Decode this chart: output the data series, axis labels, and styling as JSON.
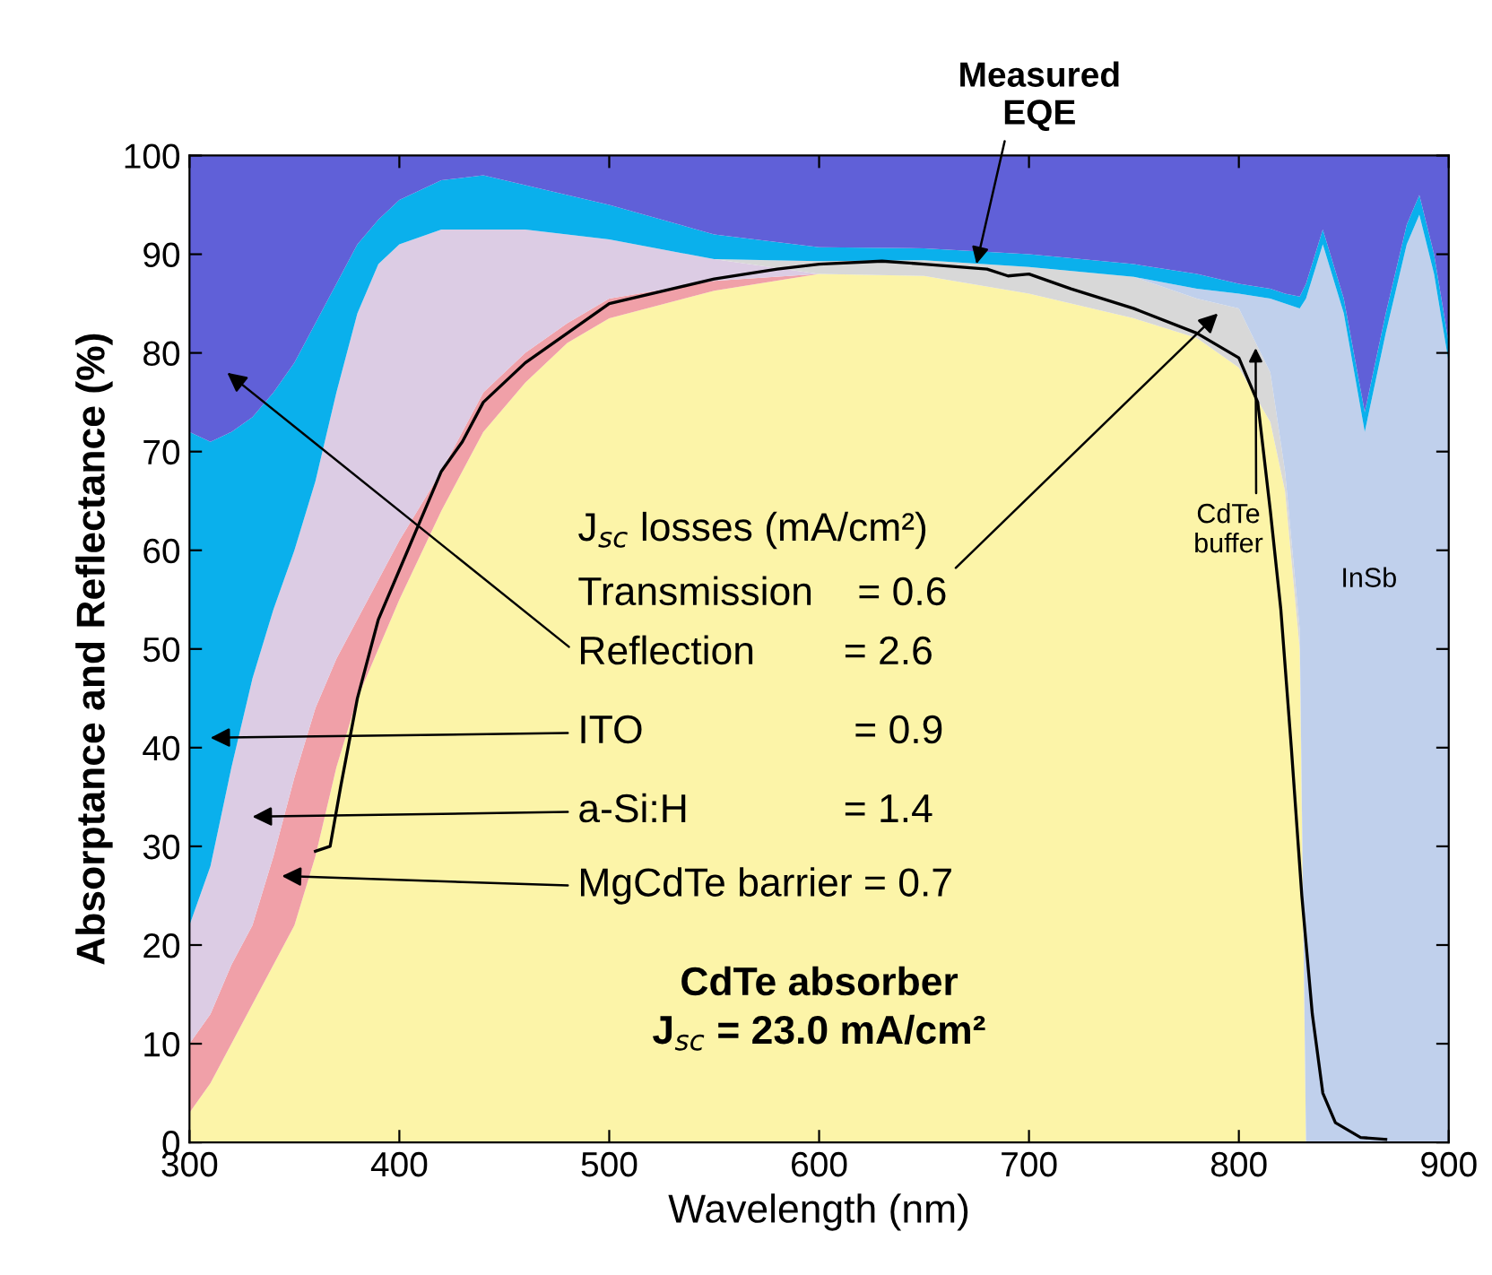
{
  "chart_data": {
    "type": "area",
    "stacked": true,
    "xlabel": "Wavelength (nm)",
    "ylabel": "Absorptance and Reflectance (%)",
    "x": [
      300,
      310,
      320,
      330,
      340,
      350,
      360,
      370,
      380,
      390,
      400,
      420,
      440,
      460,
      480,
      500,
      550,
      600,
      650,
      700,
      750,
      780,
      800,
      815,
      822,
      829,
      832,
      840,
      850,
      860,
      870,
      880,
      886,
      893,
      900
    ],
    "series": [
      {
        "color": "#fcf4a8",
        "values": [
          3,
          6,
          10,
          14,
          18,
          22,
          29,
          38,
          45,
          50,
          55,
          64,
          72,
          77,
          81,
          83.5,
          86.3,
          88,
          87.8,
          86,
          83.5,
          81.5,
          78.5,
          73,
          66,
          50,
          0,
          null,
          null,
          null,
          null,
          null,
          null,
          null,
          null
        ]
      },
      {
        "color": "#f0a0a8",
        "values": [
          7,
          7,
          8,
          8,
          11,
          15,
          15,
          11,
          8,
          7,
          6,
          4,
          4,
          3,
          2,
          2,
          1,
          0,
          null,
          null,
          null,
          null,
          null,
          null,
          null,
          null,
          null,
          null,
          null,
          null,
          null,
          null,
          null,
          null,
          null
        ]
      },
      {
        "color": "#dccce4",
        "values": [
          12,
          15,
          20,
          25,
          25,
          23,
          23,
          27,
          31,
          32,
          30,
          24.5,
          16.5,
          12.5,
          9,
          6,
          2.2,
          0,
          null,
          null,
          null,
          null,
          null,
          null,
          null,
          null,
          null,
          null,
          null,
          null,
          null,
          null,
          null,
          null,
          null
        ]
      },
      {
        "color": "#d8d8d8",
        "values": [
          null,
          null,
          null,
          null,
          null,
          null,
          null,
          null,
          null,
          null,
          null,
          null,
          null,
          null,
          null,
          null,
          0,
          1.3,
          1.6,
          2.7,
          4.2,
          4,
          6,
          5,
          2,
          2,
          0,
          null,
          null,
          null,
          null,
          null,
          null,
          null,
          null
        ]
      },
      {
        "color": "#c0d0ec",
        "values": [
          null,
          null,
          null,
          null,
          null,
          null,
          null,
          null,
          null,
          null,
          null,
          null,
          null,
          null,
          null,
          null,
          null,
          null,
          null,
          null,
          0,
          1,
          1.5,
          7.5,
          17,
          32.5,
          85.5,
          91,
          84,
          72,
          82,
          91,
          94,
          88,
          79
        ]
      },
      {
        "color": "#0ab0ec",
        "values": [
          50,
          43,
          34,
          26.5,
          22,
          19,
          16,
          11,
          7,
          4.5,
          4.5,
          5,
          5.5,
          4.5,
          4,
          3.5,
          2.5,
          1.4,
          1.2,
          1.3,
          1.3,
          1.5,
          1,
          1,
          1,
          1.2,
          1.5,
          1.5,
          1.5,
          2,
          2,
          2,
          2,
          2,
          2
        ]
      },
      {
        "color": "#6060d8",
        "values": [
          28,
          29,
          28,
          26.5,
          24,
          21,
          17,
          13,
          9,
          6.5,
          4.5,
          2.5,
          2,
          3,
          4,
          5,
          8,
          9.3,
          9.4,
          10,
          11,
          12,
          13,
          13.5,
          14,
          14.3,
          13,
          7.5,
          14.5,
          26,
          16,
          7,
          4,
          10,
          19
        ]
      },
      {
        "type": "line",
        "color": "#000000",
        "x": [
          360,
          367,
          372,
          380,
          390,
          400,
          410,
          420,
          430,
          440,
          450,
          460,
          480,
          500,
          520,
          550,
          580,
          600,
          630,
          650,
          680,
          690,
          700,
          720,
          750,
          780,
          800,
          809,
          815,
          820,
          825,
          830,
          835,
          840,
          846,
          858,
          870
        ],
        "values": [
          29.5,
          30,
          36,
          45,
          53,
          58,
          63,
          68,
          71,
          75,
          77,
          79,
          82,
          85,
          86,
          87.5,
          88.5,
          89,
          89.3,
          89,
          88.5,
          87.8,
          88,
          86.5,
          84.5,
          82,
          79.5,
          75,
          64,
          54,
          40,
          25,
          13,
          5,
          2,
          0.5,
          0.3
        ]
      }
    ],
    "xlim": [
      300,
      900
    ],
    "ylim": [
      0,
      100
    ],
    "xticks": [
      300,
      400,
      500,
      600,
      700,
      800,
      900
    ],
    "yticks": [
      0,
      10,
      20,
      30,
      40,
      50,
      60,
      70,
      80,
      90,
      100
    ],
    "grid": false,
    "marker": "none",
    "line_style": "solid",
    "annotations": [
      {
        "text": "Measured\nEQE",
        "x": 675,
        "y": 89
      },
      "J$_{sc}$ losses (mA/cm²)",
      "Transmission    = 0.6",
      "Reflection        = 2.6",
      "ITO                   = 0.9",
      "a-Si:H              = 1.4",
      "MgCdTe barrier = 0.7",
      {
        "text": "CdTe\nbuffer",
        "x": 808,
        "y": 80.5
      },
      "InSb",
      "CdTe absorber\nJ$_{sc}$ = 23.0 mA/cm²"
    ]
  }
}
